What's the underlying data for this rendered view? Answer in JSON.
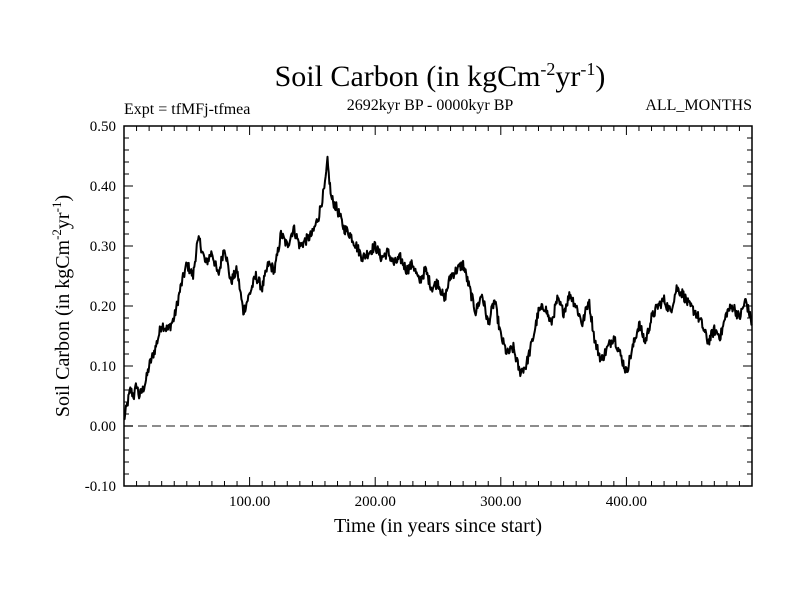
{
  "chart_data": {
    "type": "line",
    "title": "Soil Carbon (in kgCm",
    "title_sup1": "-2",
    "title_mid": "yr",
    "title_sup2": "-1",
    "title_end": ")",
    "subtitle_left": "Expt = tfMFj-tfmea",
    "subtitle_center": "2692kyr BP - 0000kyr BP",
    "subtitle_right": "ALL_MONTHS",
    "xlabel": "Time (in years since start)",
    "ylabel": "Soil Carbon (in kgCm",
    "ylabel_sup1": "-2",
    "ylabel_mid": "yr",
    "ylabel_sup2": "-1",
    "ylabel_end": ")",
    "xlim": [
      0,
      500
    ],
    "ylim": [
      -0.1,
      0.5
    ],
    "xticks": [
      100,
      200,
      300,
      400
    ],
    "xtick_labels": [
      "100.00",
      "200.00",
      "300.00",
      "400.00"
    ],
    "yticks": [
      -0.1,
      0.0,
      0.1,
      0.2,
      0.3,
      0.4,
      0.5
    ],
    "ytick_labels": [
      "-0.10",
      "0.00",
      "0.10",
      "0.20",
      "0.30",
      "0.40",
      "0.50"
    ],
    "reference_line": 0.0,
    "series": [
      {
        "name": "Soil Carbon",
        "color": "#000000",
        "x": [
          0,
          2,
          5,
          8,
          10,
          12,
          15,
          18,
          20,
          25,
          30,
          35,
          40,
          45,
          50,
          55,
          58,
          60,
          65,
          70,
          75,
          80,
          85,
          90,
          95,
          100,
          105,
          110,
          115,
          120,
          125,
          130,
          135,
          140,
          145,
          150,
          155,
          160,
          162,
          165,
          170,
          175,
          180,
          185,
          190,
          195,
          200,
          205,
          210,
          215,
          220,
          225,
          230,
          235,
          240,
          245,
          250,
          255,
          260,
          265,
          270,
          275,
          280,
          285,
          290,
          295,
          300,
          305,
          310,
          315,
          320,
          325,
          330,
          335,
          340,
          345,
          350,
          355,
          360,
          365,
          370,
          375,
          380,
          385,
          390,
          395,
          400,
          405,
          410,
          415,
          420,
          425,
          430,
          435,
          440,
          445,
          450,
          455,
          460,
          465,
          470,
          475,
          480,
          485,
          490,
          495,
          500
        ],
        "values": [
          0.01,
          0.03,
          0.06,
          0.05,
          0.07,
          0.05,
          0.06,
          0.08,
          0.1,
          0.13,
          0.17,
          0.16,
          0.18,
          0.23,
          0.27,
          0.25,
          0.3,
          0.31,
          0.27,
          0.29,
          0.25,
          0.3,
          0.24,
          0.26,
          0.19,
          0.22,
          0.25,
          0.23,
          0.27,
          0.26,
          0.32,
          0.3,
          0.33,
          0.3,
          0.31,
          0.32,
          0.35,
          0.4,
          0.44,
          0.38,
          0.36,
          0.33,
          0.32,
          0.3,
          0.28,
          0.29,
          0.3,
          0.28,
          0.29,
          0.27,
          0.28,
          0.26,
          0.27,
          0.24,
          0.26,
          0.23,
          0.24,
          0.21,
          0.25,
          0.26,
          0.27,
          0.23,
          0.19,
          0.22,
          0.17,
          0.21,
          0.15,
          0.12,
          0.13,
          0.09,
          0.1,
          0.14,
          0.19,
          0.2,
          0.17,
          0.21,
          0.19,
          0.22,
          0.2,
          0.17,
          0.21,
          0.14,
          0.11,
          0.13,
          0.15,
          0.12,
          0.09,
          0.13,
          0.17,
          0.14,
          0.18,
          0.2,
          0.21,
          0.19,
          0.23,
          0.22,
          0.2,
          0.19,
          0.17,
          0.14,
          0.16,
          0.15,
          0.19,
          0.2,
          0.18,
          0.21,
          0.17
        ]
      }
    ]
  }
}
